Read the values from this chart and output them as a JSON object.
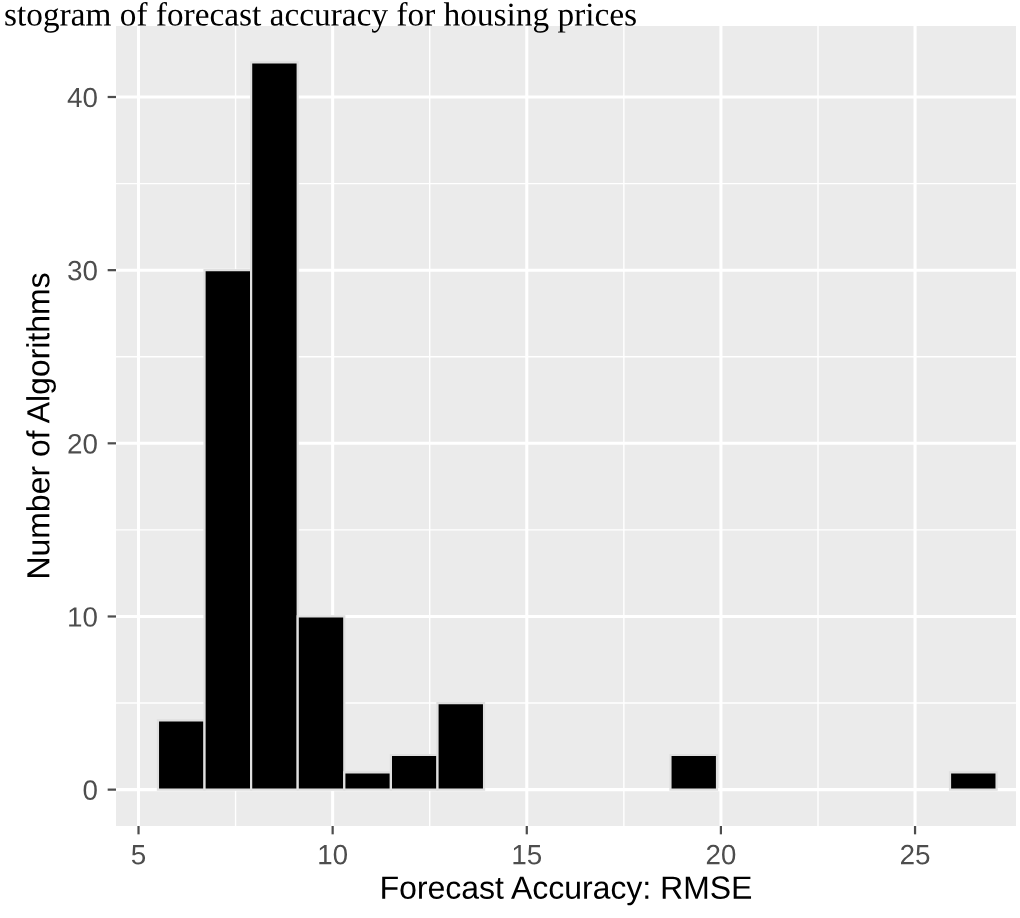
{
  "chart_data": {
    "type": "histogram",
    "title": "stogram of forecast accuracy for housing prices",
    "xlabel": "Forecast Accuracy: RMSE",
    "ylabel": "Number of Algorithms",
    "bins": [
      5.5,
      6.7,
      7.9,
      9.1,
      10.3,
      11.5,
      12.7,
      13.9,
      15.1,
      16.3,
      17.5,
      18.7,
      19.9,
      21.1,
      22.3,
      23.5,
      24.7,
      25.9,
      27.1
    ],
    "values": [
      4,
      30,
      42,
      10,
      1,
      2,
      5,
      0,
      0,
      0,
      0,
      2,
      0,
      0,
      0,
      0,
      0,
      1
    ],
    "color": "#000000",
    "xlim": [
      4.42,
      27.6
    ],
    "ylim": [
      -2.1,
      44.1
    ],
    "xticks": [
      5,
      10,
      15,
      20,
      25
    ],
    "yticks": [
      0,
      10,
      20,
      30,
      40
    ],
    "grid": true
  }
}
